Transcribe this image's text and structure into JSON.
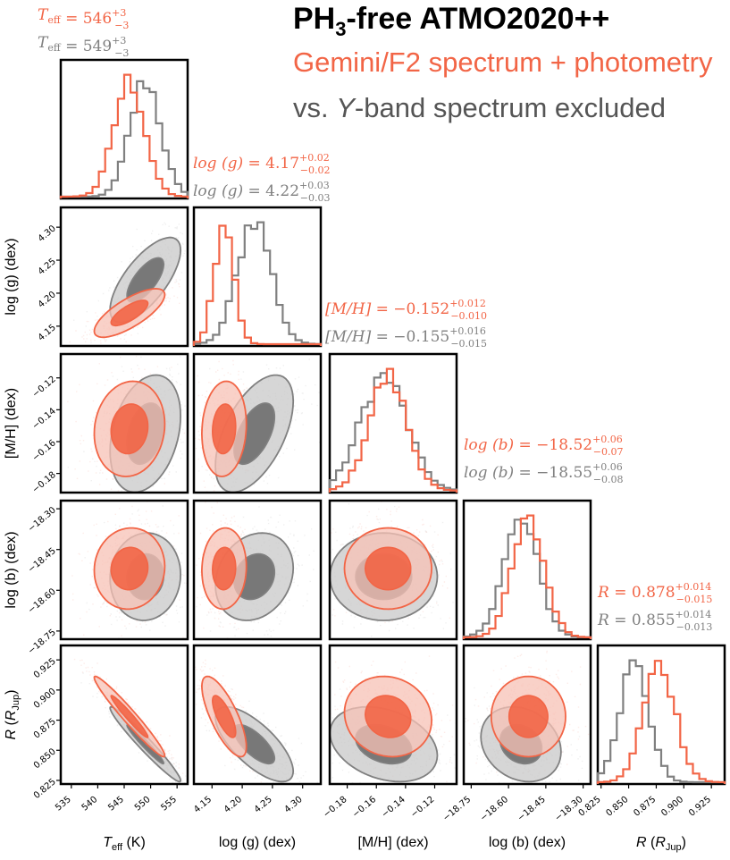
{
  "title": {
    "main_prefix": "PH",
    "main_sub": "3",
    "main_suffix": "-free ATMO2020++",
    "line2": "Gemini/F2 spectrum + photometry",
    "line3_prefix": "vs. ",
    "line3_italic": "Y",
    "line3_suffix": "-band spectrum excluded"
  },
  "colors": {
    "primary": "#f26546",
    "comparison": "#808080",
    "title": "#000000"
  },
  "chart_data": {
    "type": "corner",
    "params": [
      {
        "key": "teff",
        "label": "T_eff (K)",
        "label_main": "T",
        "label_sub": "eff",
        "label_unit": " (K)",
        "range": [
          533,
          557
        ],
        "ticks": [
          535,
          540,
          545,
          550,
          555
        ],
        "tick_labels": [
          "535",
          "540",
          "545",
          "550",
          "555"
        ],
        "primary": {
          "median": 546,
          "plus": 3,
          "minus": 3,
          "sigma": 2.9
        },
        "comparison": {
          "median": 549,
          "plus": 3,
          "minus": 3,
          "sigma": 2.9
        },
        "annot_primary": "T_eff = 546 +3 −3",
        "annot_comparison": "T_eff = 549 +3 −3",
        "annot_name": "T",
        "annot_sub": "eff",
        "annot_primary_value": "546",
        "annot_primary_plus": "+3",
        "annot_primary_minus": "−3",
        "annot_comparison_value": "549",
        "annot_comparison_plus": "+3",
        "annot_comparison_minus": "−3"
      },
      {
        "key": "logg",
        "label": "log(g) (dex)",
        "range": [
          4.12,
          4.33
        ],
        "ticks": [
          4.15,
          4.2,
          4.25,
          4.3
        ],
        "tick_labels": [
          "4.15",
          "4.20",
          "4.25",
          "4.30"
        ],
        "primary": {
          "median": 4.17,
          "plus": 0.02,
          "minus": 0.02,
          "sigma": 0.016
        },
        "comparison": {
          "median": 4.22,
          "plus": 0.03,
          "minus": 0.03,
          "sigma": 0.028
        },
        "annot_primary": "log(g) = 4.17 +0.02 −0.02",
        "annot_comparison": "log(g) = 4.22 +0.03 −0.03",
        "annot_name": "log (g)",
        "annot_primary_value": "4.17",
        "annot_primary_plus": "+0.02",
        "annot_primary_minus": "−0.02",
        "annot_comparison_value": "4.22",
        "annot_comparison_plus": "+0.03",
        "annot_comparison_minus": "−0.03"
      },
      {
        "key": "mh",
        "label": "[M/H] (dex)",
        "range": [
          -0.192,
          -0.105
        ],
        "ticks": [
          -0.18,
          -0.16,
          -0.14,
          -0.12
        ],
        "tick_labels": [
          "−0.18",
          "−0.16",
          "−0.14",
          "−0.12"
        ],
        "primary": {
          "median": -0.152,
          "plus": 0.012,
          "minus": 0.01,
          "sigma": 0.013
        },
        "comparison": {
          "median": -0.155,
          "plus": 0.016,
          "minus": 0.015,
          "sigma": 0.016
        },
        "annot_primary": "[M/H] = −0.152 +0.012 −0.010",
        "annot_comparison": "[M/H] = −0.155 +0.016 −0.015",
        "annot_name": "[M/H]",
        "annot_primary_value": "−0.152",
        "annot_primary_plus": "+0.012",
        "annot_primary_minus": "−0.010",
        "annot_comparison_value": "−0.155",
        "annot_comparison_plus": "+0.016",
        "annot_comparison_minus": "−0.015"
      },
      {
        "key": "logb",
        "label": "log(b) (dex)",
        "range": [
          -18.78,
          -18.27
        ],
        "ticks": [
          -18.75,
          -18.6,
          -18.45,
          -18.3
        ],
        "tick_labels": [
          "−18.75",
          "−18.60",
          "−18.45",
          "−18.30"
        ],
        "primary": {
          "median": -18.52,
          "plus": 0.06,
          "minus": 0.07,
          "sigma": 0.065
        },
        "comparison": {
          "median": -18.55,
          "plus": 0.06,
          "minus": 0.08,
          "sigma": 0.07
        },
        "annot_primary": "log(b) = −18.52 +0.06 −0.07",
        "annot_comparison": "log(b) = −18.55 +0.06 −0.08",
        "annot_name": "log (b)",
        "annot_primary_value": "−18.52",
        "annot_primary_plus": "+0.06",
        "annot_primary_minus": "−0.07",
        "annot_comparison_value": "−18.55",
        "annot_comparison_plus": "+0.06",
        "annot_comparison_minus": "−0.08"
      },
      {
        "key": "radius",
        "label": "R (R_Jup)",
        "range": [
          0.822,
          0.937
        ],
        "ticks": [
          0.825,
          0.85,
          0.875,
          0.9,
          0.925
        ],
        "tick_labels": [
          "0.825",
          "0.850",
          "0.875",
          "0.900",
          "0.925"
        ],
        "primary": {
          "median": 0.878,
          "plus": 0.014,
          "minus": 0.015,
          "sigma": 0.0145
        },
        "comparison": {
          "median": 0.855,
          "plus": 0.014,
          "minus": 0.013,
          "sigma": 0.0135
        },
        "annot_primary": "R = 0.878 +0.014 −0.015",
        "annot_comparison": "R = 0.855 +0.014 −0.013",
        "annot_name": "R",
        "annot_primary_value": "0.878",
        "annot_primary_plus": "+0.014",
        "annot_primary_minus": "−0.015",
        "annot_comparison_value": "0.855",
        "annot_comparison_plus": "+0.014",
        "annot_comparison_minus": "−0.013"
      }
    ],
    "axis_labels": {
      "teff": "T_eff (K)",
      "logg": "log (g) (dex)",
      "mh": "[M/H] (dex)",
      "logb": "log (b) (dex)",
      "radius": "R (R_Jup)"
    },
    "correlations": {
      "primary": {
        "teff-logg": 0.75,
        "teff-mh": 0.1,
        "teff-logb": 0.05,
        "teff-radius": -0.97,
        "logg-mh": 0.1,
        "logg-logb": 0.05,
        "logg-radius": -0.75,
        "mh-logb": 0.0,
        "mh-radius": -0.1,
        "logb-radius": 0.0
      },
      "comparison": {
        "teff-logg": 0.7,
        "teff-mh": 0.3,
        "teff-logb": 0.05,
        "teff-radius": -0.97,
        "logg-mh": 0.55,
        "logg-logb": 0.2,
        "logg-radius": -0.72,
        "mh-logb": 0.0,
        "mh-radius": -0.3,
        "logb-radius": -0.2
      }
    },
    "contour_levels": [
      "1-sigma",
      "2-sigma"
    ],
    "legend": [
      "Gemini/F2 spectrum + photometry",
      "Y-band spectrum excluded"
    ]
  }
}
